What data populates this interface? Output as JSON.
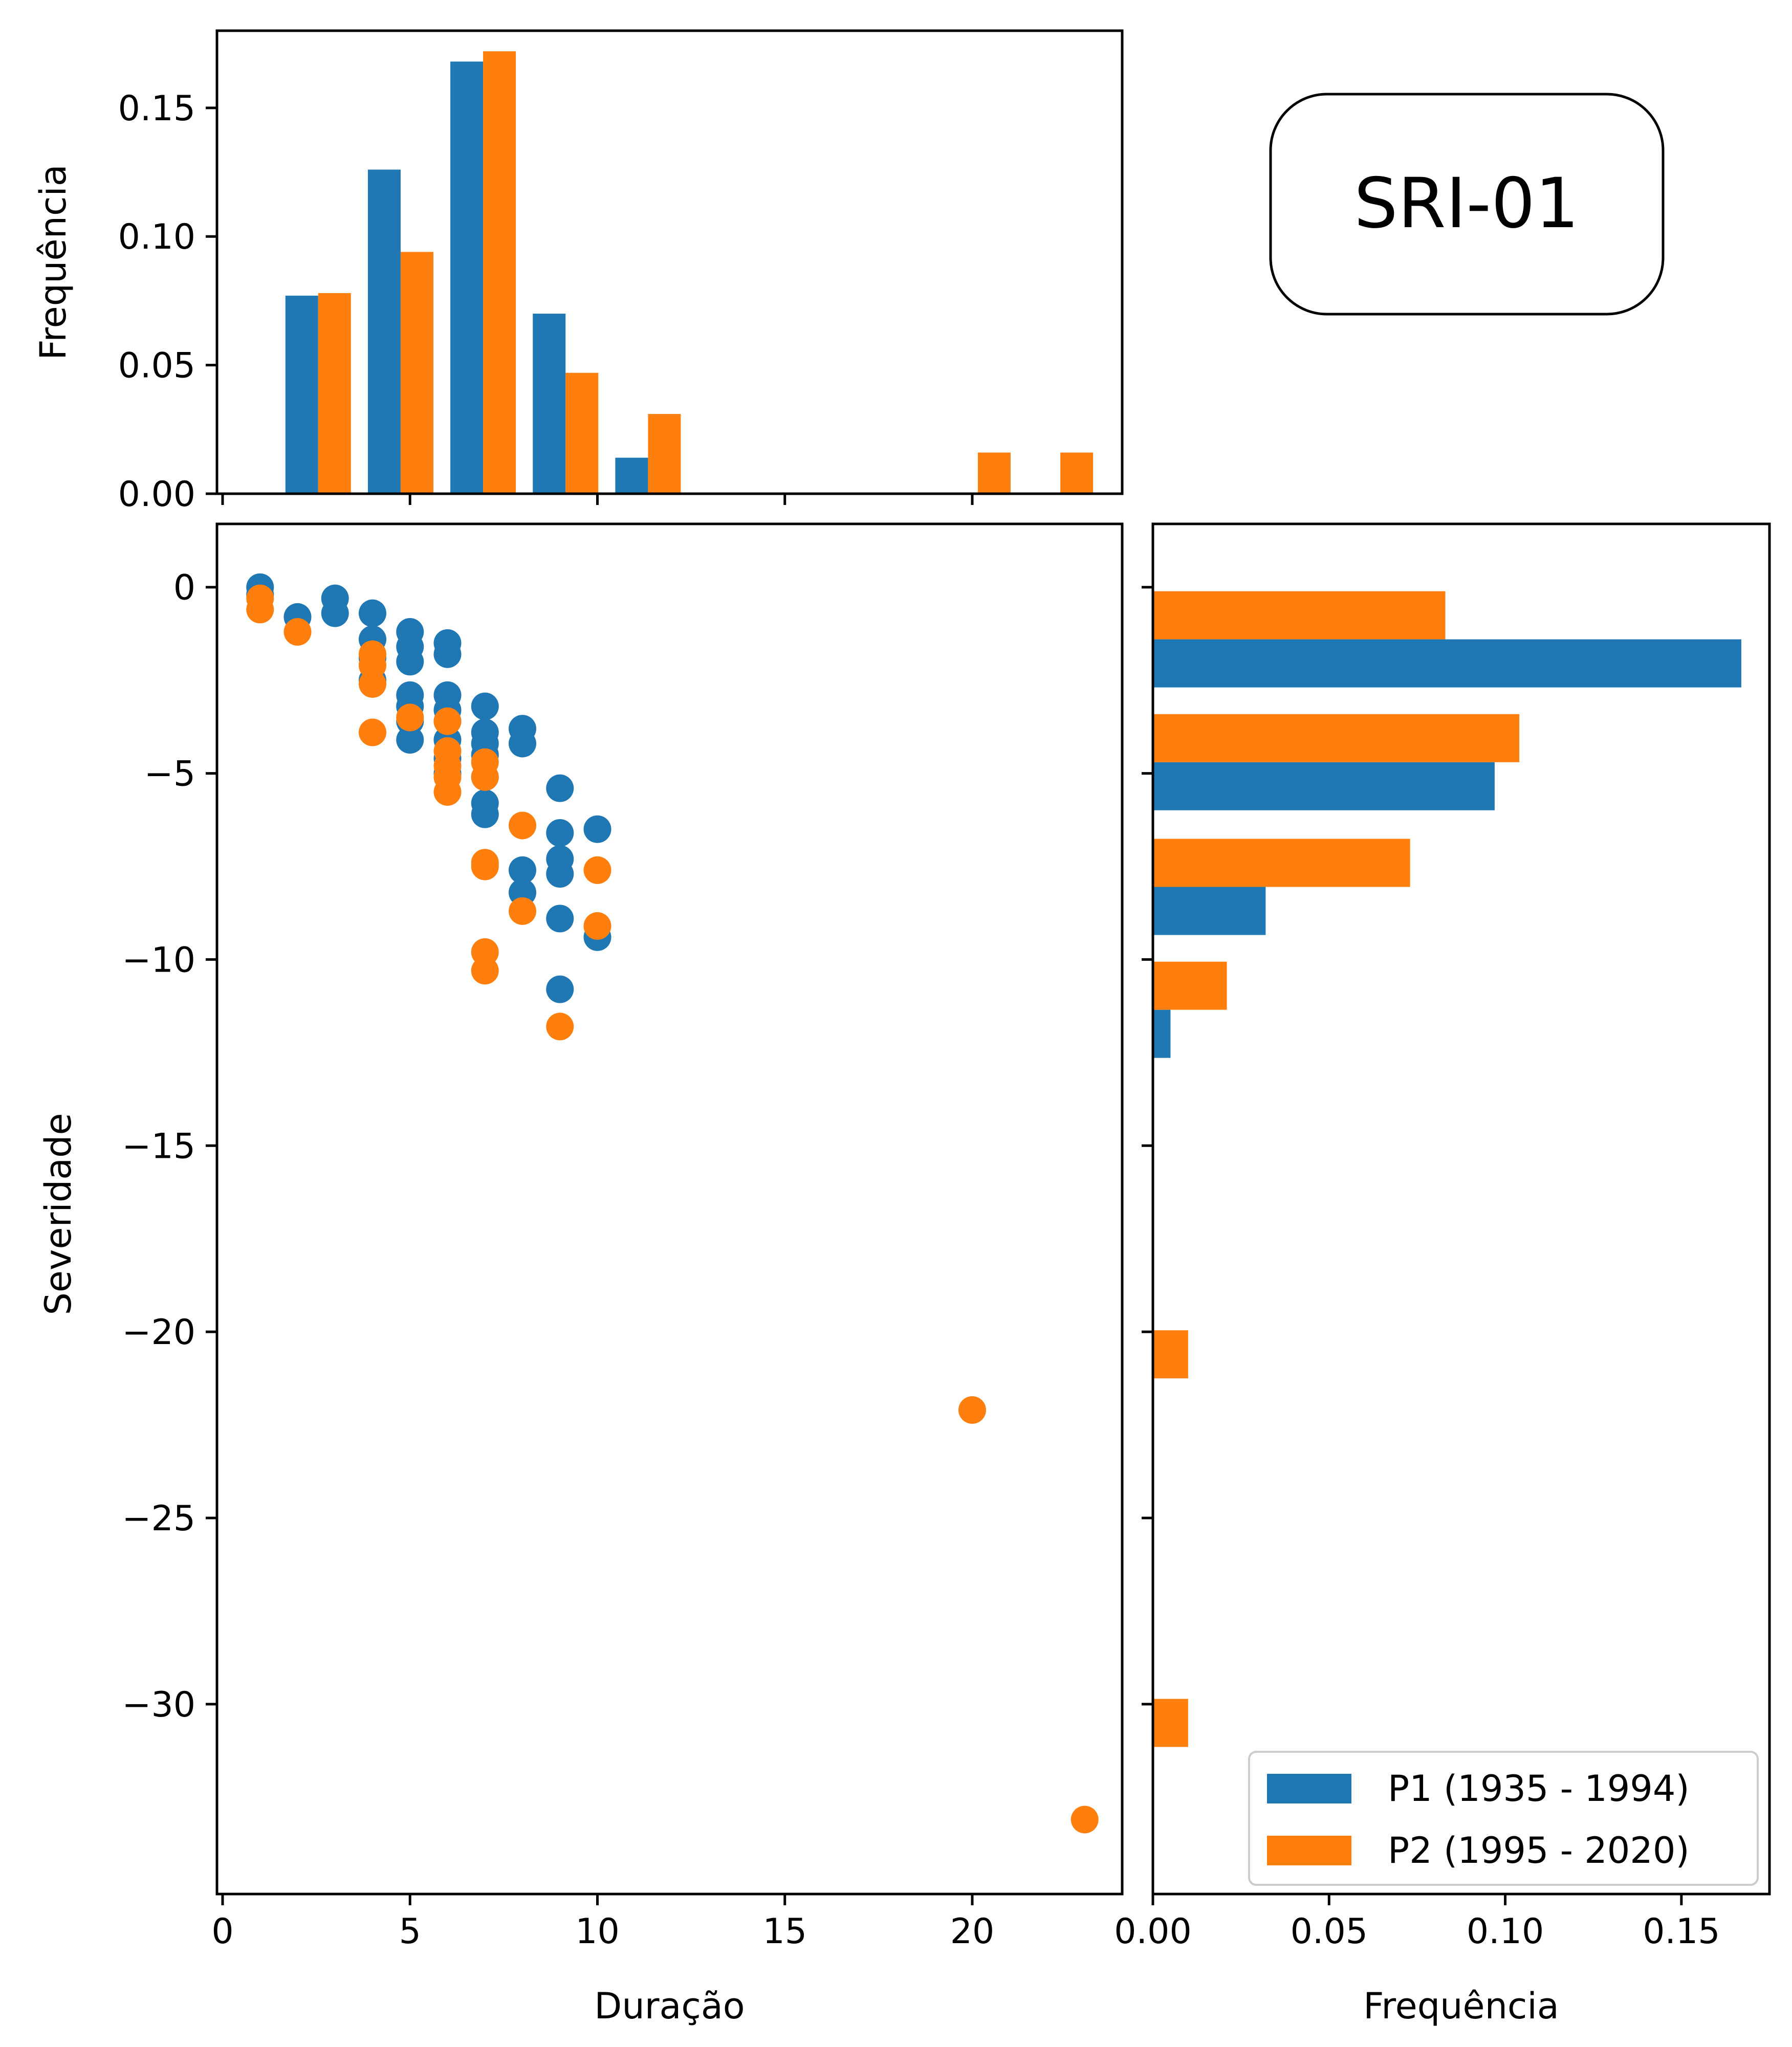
{
  "badge": "SRI-01",
  "colors": {
    "p1": "#1f77b4",
    "p2": "#ff7f0e"
  },
  "legend": {
    "placement": "lower-right",
    "entries": [
      "P1 (1935 - 1994)",
      "P2 (1995 - 2020)"
    ]
  },
  "chart_data": [
    {
      "id": "top_hist",
      "type": "bar",
      "xlabel": "",
      "ylabel": "Frequência",
      "xlim": [
        -0.15,
        24.0
      ],
      "ylim": [
        0,
        0.18
      ],
      "xticks": [
        0,
        5,
        10,
        15,
        20
      ],
      "yticks": [
        0.0,
        0.05,
        0.1,
        0.15
      ],
      "ytick_labels": [
        "0.00",
        "0.05",
        "0.10",
        "0.15"
      ],
      "bin_centers": [
        2.55,
        4.75,
        6.95,
        9.15,
        11.35,
        13.55,
        15.75,
        17.95,
        20.15,
        22.35
      ],
      "series": [
        {
          "name": "P1 (1935 - 1994)",
          "values": [
            0.077,
            0.126,
            0.168,
            0.07,
            0.014,
            0,
            0,
            0,
            0,
            0
          ]
        },
        {
          "name": "P2 (1995 - 2020)",
          "values": [
            0.078,
            0.094,
            0.172,
            0.047,
            0.031,
            0,
            0,
            0,
            0.016,
            0.016
          ]
        }
      ]
    },
    {
      "id": "scatter",
      "type": "scatter",
      "xlabel": "Duração",
      "ylabel": "Severidade",
      "xlim": [
        -0.15,
        24.0
      ],
      "ylim": [
        -35.1,
        1.7
      ],
      "xticks": [
        0,
        5,
        10,
        15,
        20
      ],
      "xtick_labels": [
        "0",
        "5",
        "10",
        "15",
        "20"
      ],
      "yticks": [
        0,
        -5,
        -10,
        -15,
        -20,
        -25,
        -30
      ],
      "ytick_labels": [
        "0",
        "−5",
        "−10",
        "−15",
        "−20",
        "−25",
        "−30"
      ],
      "series": [
        {
          "name": "P1 (1935 - 1994)",
          "points": [
            [
              1,
              0
            ],
            [
              1,
              -0.2
            ],
            [
              2,
              -0.8
            ],
            [
              3,
              -0.3
            ],
            [
              3,
              -0.7
            ],
            [
              4,
              -0.7
            ],
            [
              4,
              -1.4
            ],
            [
              4,
              -1.9
            ],
            [
              4,
              -2.5
            ],
            [
              5,
              -1.2
            ],
            [
              5,
              -1.6
            ],
            [
              5,
              -2.0
            ],
            [
              5,
              -2.9
            ],
            [
              5,
              -3.2
            ],
            [
              5,
              -3.6
            ],
            [
              5,
              -4.1
            ],
            [
              6,
              -1.5
            ],
            [
              6,
              -1.8
            ],
            [
              6,
              -2.9
            ],
            [
              6,
              -3.3
            ],
            [
              6,
              -3.6
            ],
            [
              6,
              -4.1
            ],
            [
              6,
              -4.6
            ],
            [
              6,
              -5.0
            ],
            [
              7,
              -3.2
            ],
            [
              7,
              -3.9
            ],
            [
              7,
              -4.2
            ],
            [
              7,
              -4.5
            ],
            [
              7,
              -5.1
            ],
            [
              7,
              -5.8
            ],
            [
              7,
              -6.1
            ],
            [
              8,
              -3.8
            ],
            [
              8,
              -4.2
            ],
            [
              8,
              -7.6
            ],
            [
              8,
              -8.2
            ],
            [
              9,
              -5.4
            ],
            [
              9,
              -6.6
            ],
            [
              9,
              -7.3
            ],
            [
              9,
              -7.7
            ],
            [
              9,
              -8.9
            ],
            [
              9,
              -10.8
            ],
            [
              10,
              -6.5
            ],
            [
              10,
              -9.4
            ]
          ]
        },
        {
          "name": "P2 (1995 - 2020)",
          "points": [
            [
              1,
              -0.3
            ],
            [
              1,
              -0.6
            ],
            [
              2,
              -1.2
            ],
            [
              4,
              -1.8
            ],
            [
              4,
              -2.1
            ],
            [
              4,
              -2.6
            ],
            [
              4,
              -3.9
            ],
            [
              5,
              -3.5
            ],
            [
              6,
              -3.6
            ],
            [
              6,
              -4.4
            ],
            [
              6,
              -4.8
            ],
            [
              6,
              -5.1
            ],
            [
              6,
              -5.5
            ],
            [
              7,
              -4.7
            ],
            [
              7,
              -5.1
            ],
            [
              7,
              -7.4
            ],
            [
              7,
              -7.5
            ],
            [
              7,
              -9.8
            ],
            [
              7,
              -10.3
            ],
            [
              8,
              -6.4
            ],
            [
              8,
              -8.7
            ],
            [
              9,
              -11.8
            ],
            [
              10,
              -7.6
            ],
            [
              10,
              -9.1
            ],
            [
              20,
              -22.1
            ],
            [
              23,
              -33.1
            ]
          ]
        }
      ]
    },
    {
      "id": "right_hist",
      "type": "bar",
      "orientation": "horizontal",
      "xlabel": "Frequência",
      "ylabel": "",
      "xlim": [
        0,
        0.175
      ],
      "ylim": [
        -35.1,
        1.7
      ],
      "xticks": [
        0.0,
        0.05,
        0.1,
        0.15
      ],
      "xtick_labels": [
        "0.00",
        "0.05",
        "0.10",
        "0.15"
      ],
      "bin_centers": [
        -1.4,
        -4.7,
        -8.05,
        -11.35,
        -14.65,
        -17.95,
        -21.25,
        -24.55,
        -27.85,
        -31.15
      ],
      "series": [
        {
          "name": "P1 (1935 - 1994)",
          "values": [
            0.167,
            0.097,
            0.032,
            0.005,
            0,
            0,
            0,
            0,
            0,
            0
          ]
        },
        {
          "name": "P2 (1995 - 2020)",
          "values": [
            0.083,
            0.104,
            0.073,
            0.021,
            0,
            0,
            0.01,
            0,
            0,
            0.01
          ]
        }
      ]
    }
  ]
}
